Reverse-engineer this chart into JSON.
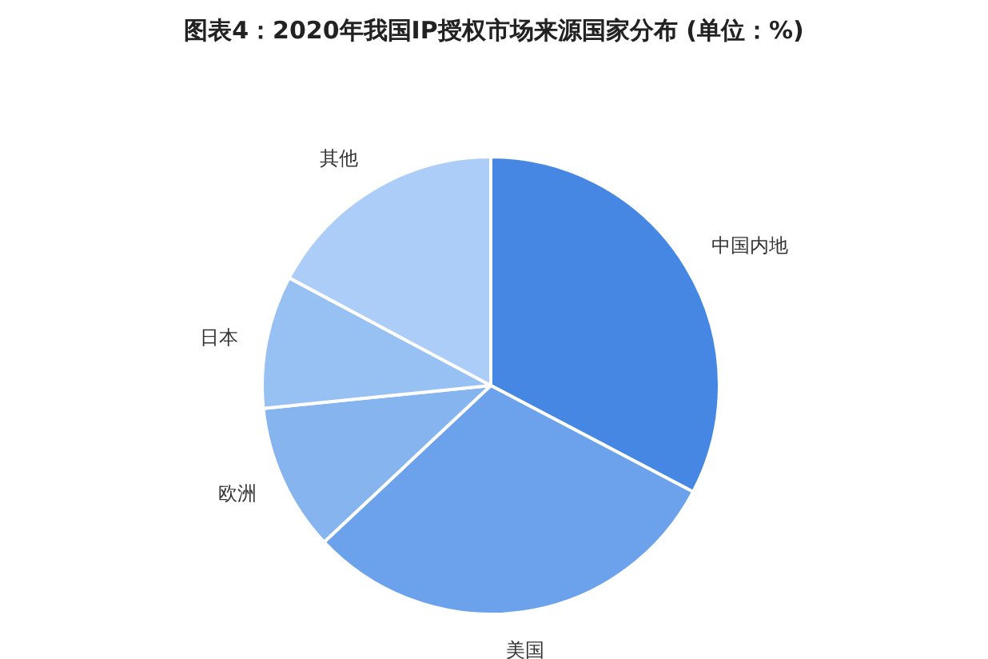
{
  "chart_data": {
    "type": "pie",
    "title": "图表4：2020年我国IP授权市场来源国家分布 (单位：%)",
    "categories": [
      "中国内地",
      "美国",
      "欧洲",
      "日本",
      "其他"
    ],
    "values": [
      32.7,
      30.3,
      10.4,
      9.4,
      17.2
    ],
    "colors": [
      "#4787e4",
      "#6ba2eb",
      "#85b4ef",
      "#98c1f3",
      "#abcdf7"
    ]
  }
}
